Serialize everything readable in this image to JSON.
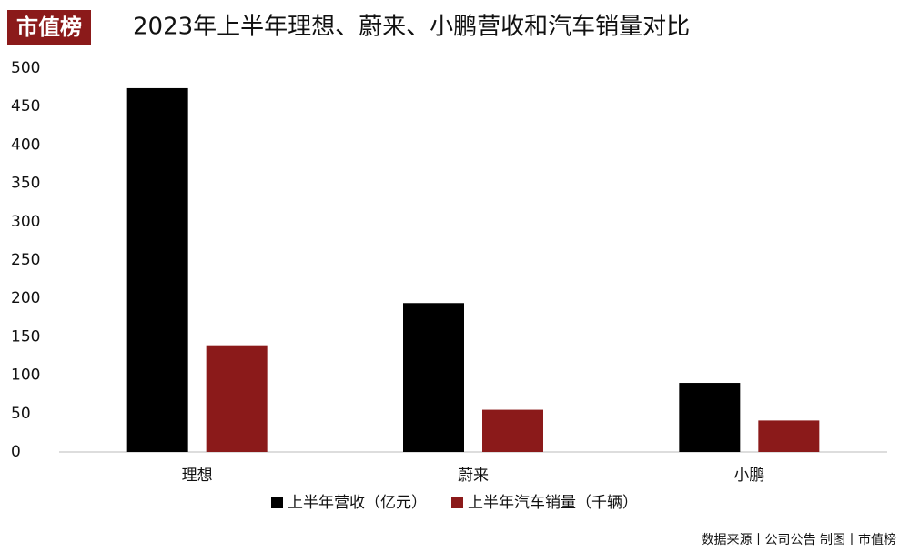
{
  "chart_data": {
    "type": "bar",
    "logo": "市值榜",
    "title": "2023年上半年理想、蔚来、小鹏营收和汽车销量对比",
    "categories": [
      "理想",
      "蔚来",
      "小鹏"
    ],
    "series": [
      {
        "name": "上半年营收（亿元）",
        "color": "#000000",
        "values": [
          474,
          194,
          90
        ]
      },
      {
        "name": "上半年汽车销量（千辆）",
        "color": "#8b1a1a",
        "values": [
          139,
          55,
          41
        ]
      }
    ],
    "ylim": [
      0,
      500
    ],
    "yticks": [
      0,
      50,
      100,
      150,
      200,
      250,
      300,
      350,
      400,
      450,
      500
    ],
    "grid": false,
    "source": "数据来源丨公司公告 制图丨市值榜"
  }
}
